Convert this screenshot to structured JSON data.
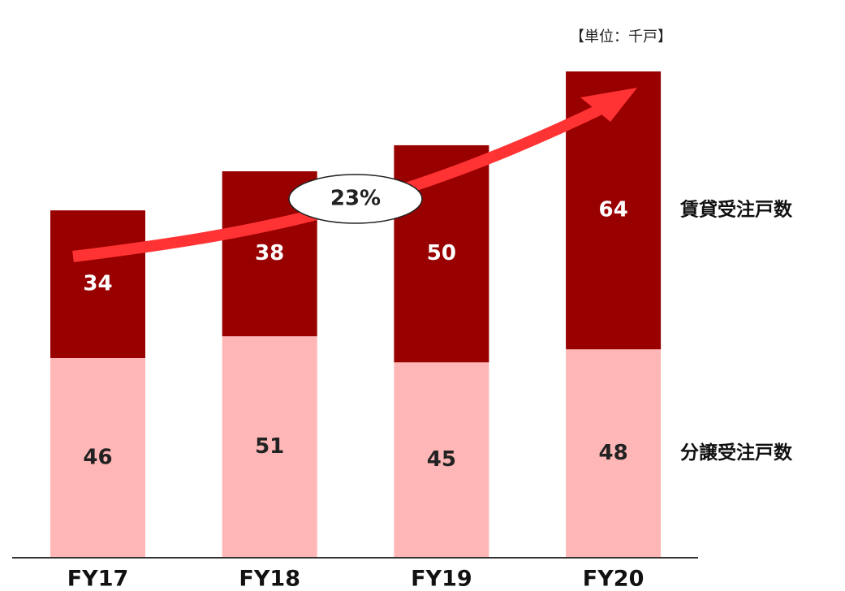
{
  "chart_data": {
    "type": "stacked_bar",
    "unit_label": "【単位：千戸】",
    "categories": [
      "FY17",
      "FY18",
      "FY19",
      "FY20"
    ],
    "series": [
      {
        "name": "分譲受注戸数",
        "color": "#ffb6b6",
        "label_color": "#222222",
        "values": [
          46,
          51,
          45,
          48
        ]
      },
      {
        "name": "賃貸受注戸数",
        "color": "#990000",
        "label_color": "#ffffff",
        "values": [
          34,
          38,
          50,
          64
        ]
      }
    ],
    "annotation": "23%"
  }
}
